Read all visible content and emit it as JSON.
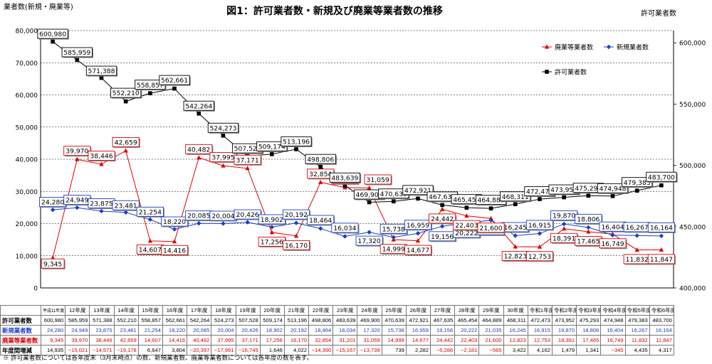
{
  "title": "図1：許可業者数・新規及び廃業等業者数の推移",
  "chart_data": {
    "type": "line",
    "title": "図1：許可業者数・新規及び廃業等業者数の推移",
    "left_axis_label": "業者数(新規・廃業等)",
    "right_axis_label": "許可業者数",
    "left_ylim": [
      0,
      80000
    ],
    "left_ticks": [
      "0",
      "10,000",
      "20,000",
      "30,000",
      "40,000",
      "50,000",
      "60,000",
      "70,000",
      "80,000"
    ],
    "right_ylim": [
      400000,
      610000
    ],
    "right_ticks": [
      "400,000",
      "450,000",
      "500,000",
      "550,000",
      "600,000"
    ],
    "grid": "horizontal",
    "legend_position": "top-right",
    "categories": [
      "平成11年度",
      "12年度",
      "13年度",
      "14年度",
      "15年度",
      "16年度",
      "17年度",
      "18年度",
      "19年度",
      "20年度",
      "21年度",
      "22年度",
      "23年度",
      "24年度",
      "25年度",
      "26年度",
      "27年度",
      "28年度",
      "29年度",
      "30年度",
      "令和1年度",
      "令和2年度",
      "令和3年度",
      "令和4年度",
      "令和5年度",
      "令和6年度"
    ],
    "series": [
      {
        "name": "廃業等業者数",
        "axis": "left",
        "color": "#e00000",
        "marker": "triangle",
        "values": [
          9345,
          39970,
          38446,
          42659,
          14607,
          14416,
          40482,
          37995,
          37171,
          17256,
          16170,
          32854,
          31201,
          31059,
          14999,
          14677,
          24442,
          22403,
          21600,
          12823,
          12753,
          18391,
          17465,
          16749,
          11832,
          11847
        ],
        "labels": [
          "9,345",
          "39,970",
          "38,446",
          "42,659",
          "14,607",
          "14,416",
          "40,482",
          "37,995",
          "37,171",
          "17,256",
          "16,170",
          "32,854",
          "31,201",
          "31,059",
          "14,999",
          "14,677",
          "24,442",
          "22,403",
          "21,600",
          "12,823",
          "12,753",
          "18,391",
          "17,465",
          "16,749",
          "11,832",
          "11,847"
        ]
      },
      {
        "name": "新規業者数",
        "axis": "left",
        "color": "#1a3fc8",
        "marker": "diamond",
        "values": [
          24280,
          24949,
          23875,
          23481,
          21254,
          18220,
          20085,
          20004,
          20426,
          18902,
          20192,
          18464,
          16034,
          17320,
          15738,
          16959,
          19156,
          20222,
          21035,
          16245,
          16915,
          19870,
          18806,
          16404,
          16267,
          16164
        ],
        "labels": [
          "24,280",
          "24,949",
          "23,875",
          "23,481",
          "21,254",
          "18,220",
          "20,085",
          "20,004",
          "20,426",
          "18,902",
          "20,192",
          "18,464",
          "16,034",
          "17,320",
          "15,738",
          "16,959",
          "19,156",
          "20,222",
          "21,035",
          "16,245",
          "16,915",
          "19,870",
          "18,806",
          "16,404",
          "16,267",
          "16,164"
        ]
      },
      {
        "name": "許可業者数",
        "axis": "right",
        "color": "#000000",
        "marker": "square",
        "values": [
          600980,
          585959,
          571388,
          552210,
          558857,
          562661,
          542264,
          524273,
          507528,
          509174,
          513196,
          498806,
          483639,
          469900,
          470639,
          472921,
          467635,
          465454,
          464889,
          468311,
          472473,
          473952,
          475293,
          474948,
          479383,
          483700
        ],
        "labels": [
          "600,980",
          "585,959",
          "571,388",
          "552,210",
          "558,857",
          "562,661",
          "542,264",
          "524,273",
          "507,528",
          "509,174",
          "513,196",
          "498,806",
          "483,639",
          "469,900",
          "470,639",
          "472,921",
          "467,635",
          "465,454",
          "464,889",
          "468,311",
          "472,473",
          "473,952",
          "475,293",
          "474,948",
          "479,383",
          "483,700"
        ]
      }
    ]
  },
  "table": {
    "headers": [
      "平成11年度",
      "12年度",
      "13年度",
      "14年度",
      "15年度",
      "16年度",
      "17年度",
      "18年度",
      "19年度",
      "20年度",
      "21年度",
      "22年度",
      "23年度",
      "24年度",
      "25年度",
      "26年度",
      "27年度",
      "28年度",
      "29年度",
      "30年度",
      "令和1年度",
      "令和2年度",
      "令和3年度",
      "令和4年度",
      "令和5年度",
      "令和6年度"
    ],
    "rows": [
      {
        "label": "許可業者数",
        "style": "permit",
        "values": [
          "600,980",
          "585,959",
          "571,388",
          "552,210",
          "558,857",
          "562,661",
          "542,264",
          "524,273",
          "507,528",
          "509,174",
          "513,196",
          "498,806",
          "483,639",
          "469,900",
          "470,639",
          "472,921",
          "467,635",
          "465,454",
          "464,889",
          "468,311",
          "472,473",
          "473,952",
          "475,293",
          "474,948",
          "479,383",
          "483,700"
        ]
      },
      {
        "label": "新規業者数",
        "style": "new",
        "values": [
          "24,280",
          "24,949",
          "23,875",
          "23,481",
          "21,254",
          "18,220",
          "20,085",
          "20,004",
          "20,426",
          "18,902",
          "20,192",
          "18,464",
          "16,034",
          "17,320",
          "15,738",
          "16,959",
          "19,156",
          "20,222",
          "21,035",
          "16,245",
          "16,915",
          "19,870",
          "18,806",
          "16,404",
          "16,267",
          "16,164"
        ]
      },
      {
        "label": "廃業等業者数",
        "style": "abolish",
        "values": [
          "9,345",
          "39,970",
          "38,446",
          "42,659",
          "14,607",
          "14,416",
          "40,482",
          "37,995",
          "37,171",
          "17,256",
          "16,170",
          "32,854",
          "31,201",
          "31,059",
          "14,999",
          "14,677",
          "24,442",
          "22,403",
          "21,600",
          "12,823",
          "12,753",
          "18,391",
          "17,465",
          "16,749",
          "11,832",
          "11,847"
        ]
      },
      {
        "label": "年度間増減",
        "style": "diff",
        "values": [
          "14,935",
          "−15,021",
          "−14,571",
          "−19,178",
          "6,647",
          "3,804",
          "−20,397",
          "−17,991",
          "−16,745",
          "1,646",
          "4,022",
          "−14,390",
          "−15,167",
          "−13,739",
          "739",
          "2,282",
          "−5,286",
          "−2,181",
          "−565",
          "3,422",
          "4,162",
          "1,479",
          "1,341",
          "−345",
          "4,435",
          "4,317"
        ]
      }
    ]
  },
  "note": "※ 許可業者数については各年度末（3月末時点）の数、新規業者数、廃業等業者数については各年度の数を表す。"
}
